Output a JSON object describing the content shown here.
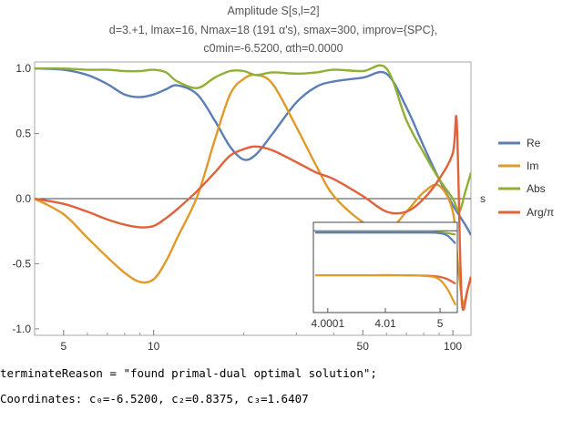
{
  "chart_data": {
    "type": "line",
    "title": "Amplitude S[s,l=2]",
    "subtitle_lines": [
      "d=3.+1, lmax=16, Nmax=18 (191 α's), smax=300, improv={SPC},",
      "c0min=-6.5200, αth=0.0000"
    ],
    "xlabel": "s",
    "ylabel": "",
    "xscale": "log",
    "xlim": [
      4,
      115
    ],
    "ylim": [
      -1.05,
      1.05
    ],
    "x_ticks": [
      "5",
      "10",
      "50",
      "100"
    ],
    "x_tick_values": [
      5,
      10,
      50,
      100
    ],
    "y_ticks": [
      "1.0",
      "0.5",
      "0.0",
      "-0.5",
      "-1.0"
    ],
    "y_tick_values": [
      1.0,
      0.5,
      0.0,
      -0.5,
      -1.0
    ],
    "legend_position": "right",
    "series": [
      {
        "name": "Re",
        "color": "#5b7fb5",
        "x": [
          4,
          5,
          6,
          7,
          8,
          9,
          10,
          11,
          12,
          14,
          16,
          18,
          20,
          22,
          25,
          30,
          35,
          40,
          50,
          60,
          70,
          80,
          90,
          100,
          110,
          115
        ],
        "y": [
          1.0,
          0.99,
          0.95,
          0.88,
          0.8,
          0.78,
          0.8,
          0.84,
          0.87,
          0.8,
          0.6,
          0.4,
          0.3,
          0.34,
          0.5,
          0.74,
          0.86,
          0.9,
          0.93,
          0.96,
          0.7,
          0.4,
          0.15,
          -0.05,
          -0.2,
          -0.28
        ]
      },
      {
        "name": "Im",
        "color": "#e09a2a",
        "x": [
          4,
          5,
          6,
          7,
          8,
          9,
          10,
          11,
          12,
          14,
          16,
          18,
          20,
          22,
          25,
          30,
          35,
          40,
          50,
          60,
          70,
          80,
          90,
          100,
          104,
          108,
          112,
          115
        ],
        "y": [
          0.0,
          -0.12,
          -0.3,
          -0.45,
          -0.57,
          -0.64,
          -0.62,
          -0.48,
          -0.3,
          0.02,
          0.45,
          0.8,
          0.92,
          0.95,
          0.88,
          0.55,
          0.25,
          0.02,
          -0.18,
          -0.25,
          -0.1,
          0.05,
          0.1,
          -0.1,
          -0.5,
          -0.8,
          -0.7,
          -0.6
        ]
      },
      {
        "name": "Abs",
        "color": "#8fb032",
        "x": [
          4,
          5,
          6,
          7,
          8,
          9,
          10,
          11,
          12,
          14,
          16,
          18,
          20,
          22,
          25,
          30,
          35,
          40,
          50,
          60,
          70,
          80,
          90,
          100,
          105,
          110,
          115
        ],
        "y": [
          1.0,
          1.0,
          0.99,
          0.99,
          0.98,
          0.98,
          0.99,
          0.97,
          0.9,
          0.85,
          0.93,
          0.98,
          0.98,
          0.95,
          0.97,
          0.96,
          0.97,
          0.99,
          0.98,
          1.0,
          0.6,
          0.35,
          0.15,
          0.0,
          -0.1,
          0.05,
          0.2
        ]
      },
      {
        "name": "Arg/π",
        "color": "#e0623a",
        "x": [
          4,
          5,
          6,
          7,
          8,
          9,
          10,
          11,
          12,
          14,
          16,
          18,
          20,
          22,
          25,
          30,
          35,
          40,
          50,
          60,
          70,
          80,
          90,
          100,
          103,
          106,
          108,
          112,
          115
        ],
        "y": [
          0.0,
          -0.04,
          -0.1,
          -0.16,
          -0.2,
          -0.22,
          -0.21,
          -0.15,
          -0.08,
          0.06,
          0.2,
          0.33,
          0.38,
          0.4,
          0.37,
          0.28,
          0.2,
          0.15,
          0.02,
          -0.1,
          -0.1,
          0.0,
          0.15,
          0.35,
          0.6,
          -0.5,
          -0.85,
          -0.7,
          -0.6
        ]
      }
    ],
    "inset": {
      "x_ticks": [
        "4.0001",
        "4.01",
        "5"
      ],
      "series": [
        {
          "name": "Abs",
          "color": "#8fb032",
          "x": [
            0,
            0.2,
            0.4,
            0.6,
            0.8,
            0.88,
            0.94,
            1.0
          ],
          "y": [
            0.0,
            0.0,
            0.0,
            0.0,
            0.0,
            -0.01,
            -0.03,
            -0.06
          ]
        },
        {
          "name": "Re",
          "color": "#5b7fb5",
          "x": [
            0,
            0.2,
            0.4,
            0.6,
            0.8,
            0.88,
            0.94,
            1.0
          ],
          "y": [
            -0.02,
            -0.02,
            -0.02,
            -0.02,
            -0.02,
            -0.03,
            -0.08,
            -0.25
          ]
        },
        {
          "name": "Arg/π",
          "color": "#e0623a",
          "x": [
            0,
            0.2,
            0.4,
            0.6,
            0.8,
            0.88,
            0.94,
            1.0
          ],
          "y": [
            -0.92,
            -0.92,
            -0.92,
            -0.92,
            -0.93,
            -0.95,
            -1.0,
            -1.1
          ]
        },
        {
          "name": "Im",
          "color": "#e09a2a",
          "x": [
            0,
            0.2,
            0.4,
            0.6,
            0.8,
            0.88,
            0.94,
            1.0
          ],
          "y": [
            -0.92,
            -0.92,
            -0.92,
            -0.92,
            -0.94,
            -1.0,
            -1.2,
            -1.55
          ]
        }
      ]
    }
  },
  "output": {
    "terminate_line": "terminateReason = \"found primal-dual optimal solution\";",
    "coordinates_line": "Coordinates: c₀=-6.5200, c₂=0.8375, c₃=1.6407"
  }
}
